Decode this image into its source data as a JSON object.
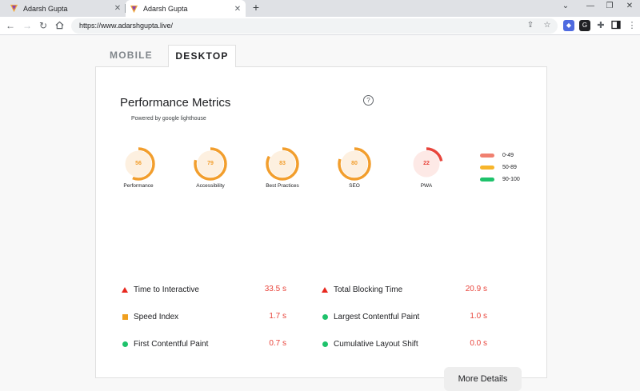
{
  "browser": {
    "tabs": [
      {
        "title": "Adarsh Gupta",
        "active": false
      },
      {
        "title": "Adarsh Gupta",
        "active": true
      }
    ],
    "url": "https://www.adarshgupta.live/",
    "icons": {
      "back": "arrow-left-icon",
      "forward": "arrow-right-icon",
      "reload": "reload-icon",
      "home": "home-icon",
      "share": "share-icon",
      "bookmark": "star-icon",
      "extensions": "puzzle-icon",
      "sidepanel": "sidepanel-icon",
      "menu": "kebab-menu-icon"
    }
  },
  "device_tabs": {
    "mobile": "MOBILE",
    "desktop": "DESKTOP"
  },
  "card": {
    "title": "Performance Metrics",
    "subtitle": "Powered by google lighthouse",
    "help": "?"
  },
  "scores": [
    {
      "label": "Performance",
      "value": "56",
      "score": 56,
      "color": "#f29e2d"
    },
    {
      "label": "Accessibility",
      "value": "79",
      "score": 79,
      "color": "#f29e2d"
    },
    {
      "label": "Best Practices",
      "value": "83",
      "score": 83,
      "color": "#f29e2d"
    },
    {
      "label": "SEO",
      "value": "80",
      "score": 80,
      "color": "#f29e2d"
    },
    {
      "label": "PWA",
      "value": "22",
      "score": 22,
      "color": "#e8453c"
    }
  ],
  "legend": [
    {
      "range": "0-49",
      "color": "#f08070"
    },
    {
      "range": "50-89",
      "color": "#f7b52b"
    },
    {
      "range": "90-100",
      "color": "#1ec26b"
    }
  ],
  "metrics": [
    {
      "label": "Time to Interactive",
      "value": "33.5 s",
      "status": "fail"
    },
    {
      "label": "Total Blocking Time",
      "value": "20.9 s",
      "status": "fail"
    },
    {
      "label": "Speed Index",
      "value": "1.7 s",
      "status": "average"
    },
    {
      "label": "Largest Contentful Paint",
      "value": "1.0 s",
      "status": "pass"
    },
    {
      "label": "First Contentful Paint",
      "value": "0.7 s",
      "status": "pass"
    },
    {
      "label": "Cumulative Layout Shift",
      "value": "0.0 s",
      "status": "pass"
    }
  ],
  "more_button": "More Details",
  "colors": {
    "fail": "#e8281e",
    "average": "#f0a020",
    "pass": "#1ec26b",
    "value_text": "#e8453c"
  }
}
